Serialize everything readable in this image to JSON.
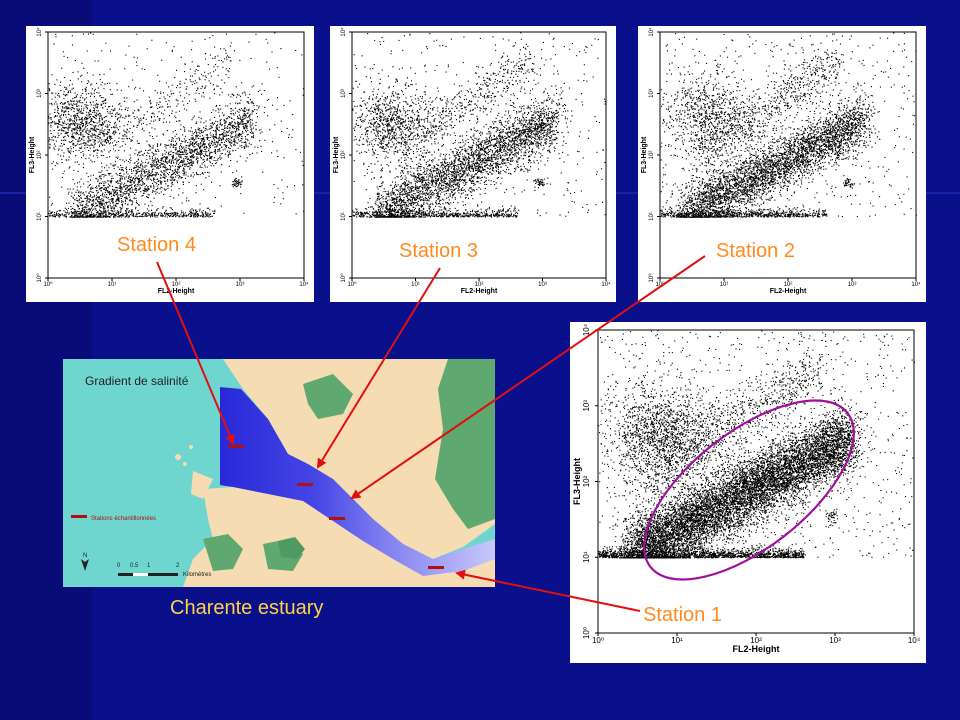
{
  "panels": [
    {
      "id": "p4",
      "title": "Station 4",
      "xlabel": "FL2-Height",
      "ylabel": "FL3-Height"
    },
    {
      "id": "p3",
      "title": "Station 3",
      "xlabel": "FL2-Height",
      "ylabel": "FL3-Height"
    },
    {
      "id": "p2",
      "title": "Station 2",
      "xlabel": "FL2-Height",
      "ylabel": "FL3-Height"
    },
    {
      "id": "p1",
      "title": "Station 1",
      "xlabel": "FL2-Height",
      "ylabel": "FL3-Height"
    }
  ],
  "tick_labels": [
    "10⁰",
    "10¹",
    "10²",
    "10³",
    "10⁴"
  ],
  "map": {
    "title": "Gradient de salinité",
    "legend": "Stations échantillonnées",
    "north": "N",
    "scale_numbers": [
      "0",
      "0.5",
      "1",
      "2"
    ],
    "scale_unit": "Kilomètres"
  },
  "caption": "Charente estuary",
  "colors": {
    "background": "#0a0f8c",
    "label": "#ff8a1e",
    "caption": "#ffd24a",
    "arrow": "#e01010",
    "ellipse": "#a0109a",
    "water": "#6fd6cf",
    "land": "#f6dcb3",
    "marsh": "#5fa86f"
  }
}
